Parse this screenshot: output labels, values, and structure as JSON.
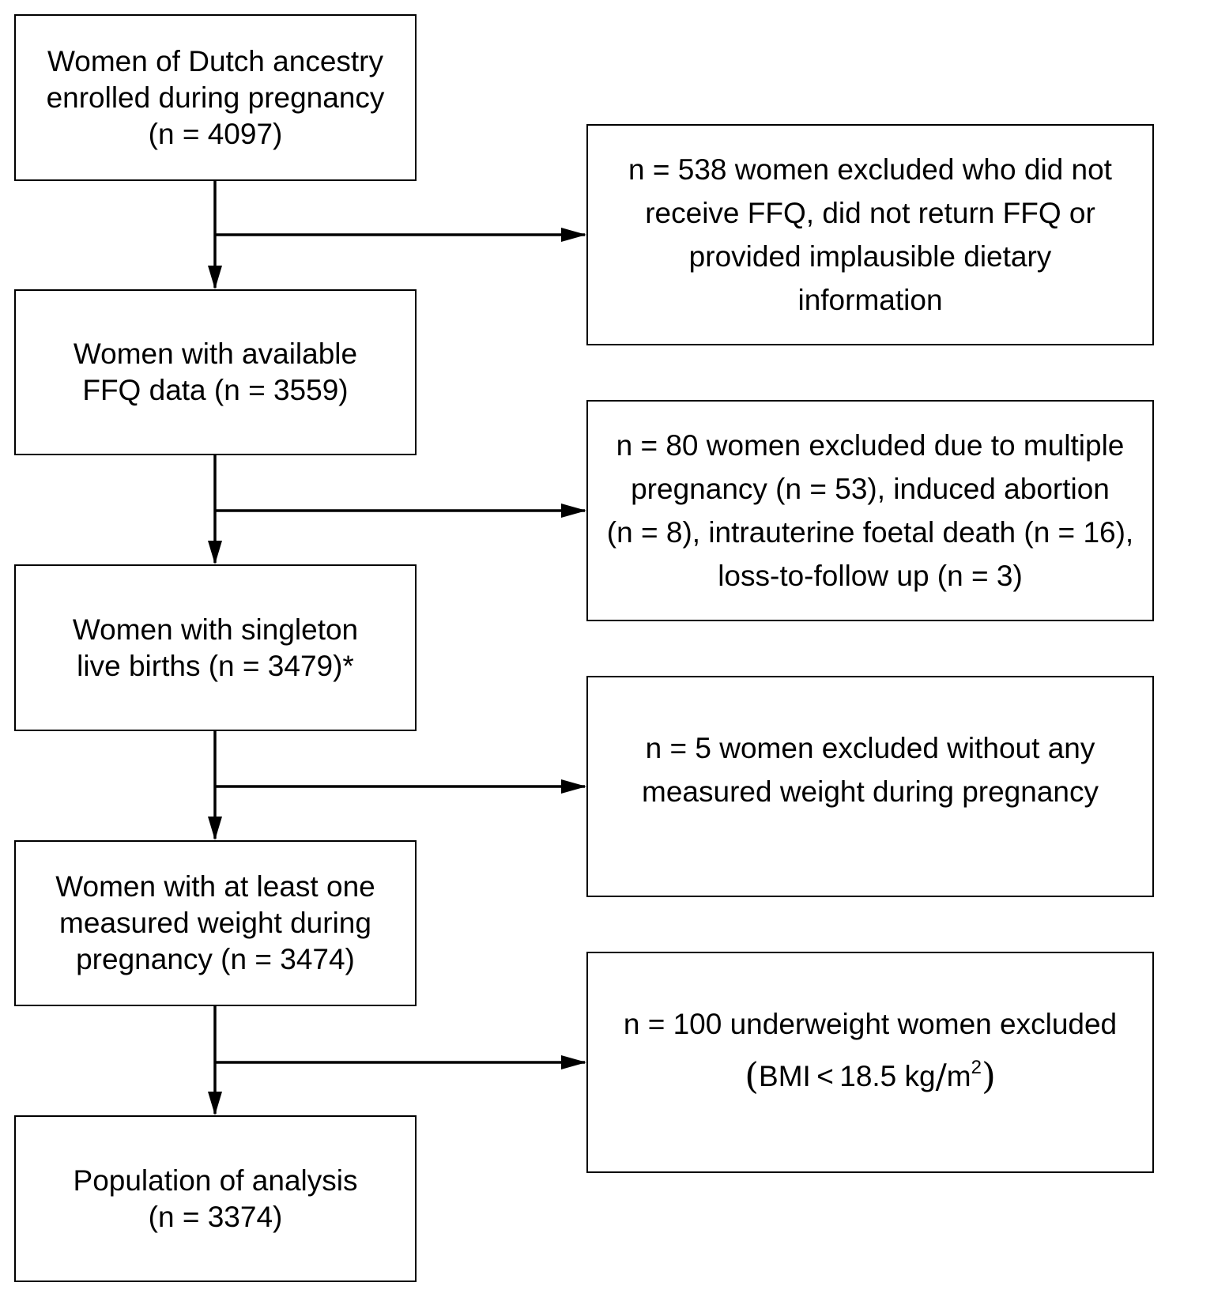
{
  "left_boxes": [
    {
      "lines": [
        "Women of Dutch ancestry",
        "enrolled during pregnancy",
        "(n = 4097)"
      ]
    },
    {
      "lines": [
        "Women with available",
        "FFQ data (n = 3559)"
      ]
    },
    {
      "lines": [
        "Women with singleton",
        "live births (n = 3479)*"
      ]
    },
    {
      "lines": [
        "Women with at least one",
        "measured weight during",
        "pregnancy (n = 3474)"
      ]
    },
    {
      "lines": [
        "Population of analysis",
        "(n = 3374)"
      ]
    }
  ],
  "right_boxes": [
    {
      "lines": [
        "n = 538 women excluded who did not",
        "receive FFQ, did not return FFQ or",
        "provided implausible dietary",
        "information"
      ]
    },
    {
      "lines": [
        "n = 80 women excluded due to multiple",
        "pregnancy (n = 53), induced abortion",
        "(n = 8), intrauterine foetal death (n = 16),",
        "loss-to-follow up (n = 3)"
      ]
    },
    {
      "lines": [
        "n = 5 women excluded without any",
        "measured weight during pregnancy"
      ]
    },
    {
      "lines": [
        "n = 100 underweight women excluded"
      ],
      "formula": {
        "open": "(",
        "prefix": "BMI",
        "lt": "<",
        "value": "18.5 kg",
        "slash": "/",
        "unit": "m",
        "exp": "2",
        "close": ")"
      }
    }
  ]
}
